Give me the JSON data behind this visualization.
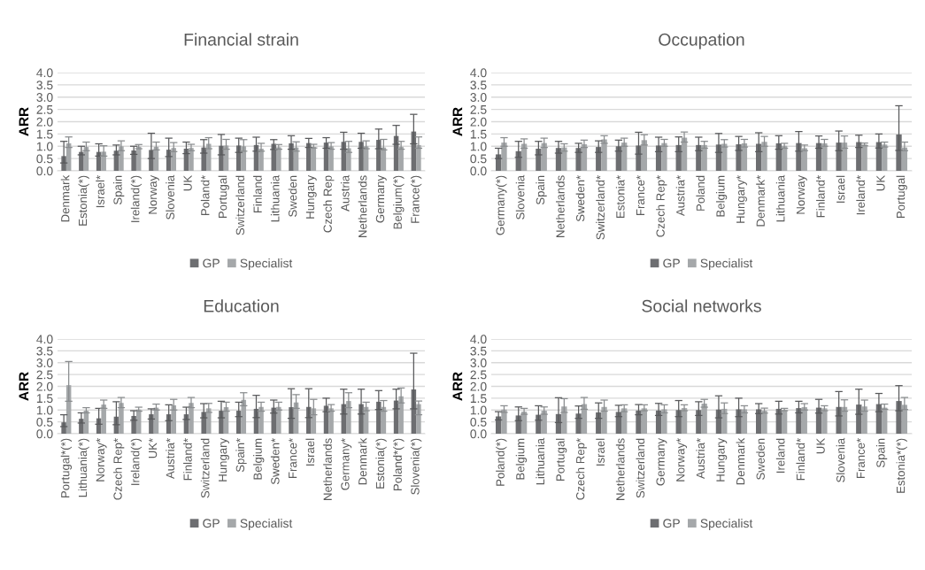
{
  "chart_data": [
    {
      "type": "bar",
      "title": "Financial strain",
      "ylabel": "ARR",
      "grid": "y",
      "legend": "bottom",
      "ylim": [
        0,
        4
      ],
      "yticks": [
        {
          "value": 0,
          "label": "0.0"
        },
        {
          "value": 0.5,
          "label": "0.5"
        },
        {
          "value": 1,
          "label": "1.0"
        },
        {
          "value": 1.5,
          "label": "1.5"
        },
        {
          "value": 2,
          "label": "2.0"
        },
        {
          "value": 2.5,
          "label": "2.5"
        },
        {
          "value": 3,
          "label": "3.0"
        },
        {
          "value": 3.5,
          "label": "3.5"
        },
        {
          "value": 4,
          "label": "4.0"
        }
      ],
      "categories": [
        "Denmark",
        "Estonia(*)",
        "Israel*",
        "Spain",
        "Ireland(*)",
        "Norway",
        "Slovenia",
        "UK",
        "Poland*",
        "Portugal",
        "Switzerland",
        "Finland",
        "Lithuania",
        "Sweden",
        "Hungary",
        "Czech Rep",
        "Austria",
        "Netherlands",
        "Germany",
        "Belgium(*)",
        "France(*)"
      ],
      "series": [
        {
          "name": "GP",
          "color": "#6d6e71",
          "values": [
            0.6,
            0.77,
            0.77,
            0.82,
            0.83,
            0.85,
            0.86,
            0.9,
            0.95,
            1.02,
            1.03,
            1.05,
            1.1,
            1.12,
            1.13,
            1.15,
            1.18,
            1.18,
            1.26,
            1.42,
            1.6
          ],
          "errors": [
            [
              0.32,
              1.2
            ],
            [
              0.65,
              1.0
            ],
            [
              0.6,
              1.1
            ],
            [
              0.65,
              1.05
            ],
            [
              0.67,
              1.0
            ],
            [
              0.5,
              1.53
            ],
            [
              0.58,
              1.33
            ],
            [
              0.7,
              1.17
            ],
            [
              0.72,
              1.27
            ],
            [
              0.65,
              1.48
            ],
            [
              0.75,
              1.33
            ],
            [
              0.8,
              1.37
            ],
            [
              0.87,
              1.27
            ],
            [
              0.88,
              1.43
            ],
            [
              0.95,
              1.32
            ],
            [
              0.92,
              1.35
            ],
            [
              0.88,
              1.57
            ],
            [
              0.92,
              1.53
            ],
            [
              0.9,
              1.7
            ],
            [
              1.08,
              1.85
            ],
            [
              1.1,
              2.3
            ]
          ]
        },
        {
          "name": "Specialist",
          "color": "#a5a8aa",
          "values": [
            1.12,
            0.97,
            0.78,
            1.0,
            0.98,
            0.98,
            0.93,
            0.93,
            1.1,
            1.03,
            1.0,
            0.9,
            0.96,
            0.95,
            0.97,
            1.0,
            0.92,
            1.0,
            0.95,
            0.98,
            1.05
          ],
          "errors": [
            [
              0.95,
              1.38
            ],
            [
              0.82,
              1.17
            ],
            [
              0.6,
              1.02
            ],
            [
              0.82,
              1.22
            ],
            [
              0.9,
              1.07
            ],
            [
              0.85,
              1.17
            ],
            [
              0.78,
              1.15
            ],
            [
              0.82,
              1.08
            ],
            [
              0.9,
              1.35
            ],
            [
              0.88,
              1.28
            ],
            [
              0.8,
              1.27
            ],
            [
              0.8,
              1.12
            ],
            [
              0.88,
              1.07
            ],
            [
              0.8,
              1.18
            ],
            [
              0.93,
              1.08
            ],
            [
              0.88,
              1.15
            ],
            [
              0.75,
              1.2
            ],
            [
              0.9,
              1.22
            ],
            [
              0.85,
              1.28
            ],
            [
              0.88,
              1.2
            ],
            [
              0.92,
              1.38
            ]
          ]
        }
      ]
    },
    {
      "type": "bar",
      "title": "Occupation",
      "ylabel": "ARR",
      "grid": "y",
      "legend": "bottom",
      "ylim": [
        0,
        4
      ],
      "yticks": [
        {
          "value": 0,
          "label": "0.0"
        },
        {
          "value": 0.5,
          "label": "0.5"
        },
        {
          "value": 1,
          "label": "1.0"
        },
        {
          "value": 1.5,
          "label": "1.5"
        },
        {
          "value": 2,
          "label": "2.0"
        },
        {
          "value": 2.5,
          "label": "2.5"
        },
        {
          "value": 3,
          "label": "3.0"
        },
        {
          "value": 3.5,
          "label": "3.5"
        },
        {
          "value": 4,
          "label": "4.0"
        }
      ],
      "categories": [
        "Germany(*)",
        "Slovenia",
        "Spain",
        "Netherlands",
        "Sweden*",
        "Switzerland*",
        "Estonia*",
        "France*",
        "Czech Rep*",
        "Austria*",
        "Poland",
        "Belgium",
        "Hungary*",
        "Denmark*",
        "Lithuania",
        "Norway",
        "Finland*",
        "Israel",
        "Ireland*",
        "UK",
        "Portugal"
      ],
      "series": [
        {
          "name": "GP",
          "color": "#6d6e71",
          "values": [
            0.67,
            0.8,
            0.9,
            0.93,
            0.93,
            0.97,
            1.0,
            1.03,
            1.03,
            1.05,
            1.05,
            1.07,
            1.08,
            1.1,
            1.12,
            1.13,
            1.13,
            1.15,
            1.17,
            1.17,
            1.48
          ],
          "errors": [
            [
              0.5,
              0.92
            ],
            [
              0.55,
              1.2
            ],
            [
              0.65,
              1.2
            ],
            [
              0.72,
              1.2
            ],
            [
              0.75,
              1.12
            ],
            [
              0.75,
              1.22
            ],
            [
              0.8,
              1.25
            ],
            [
              0.68,
              1.57
            ],
            [
              0.78,
              1.37
            ],
            [
              0.78,
              1.38
            ],
            [
              0.82,
              1.37
            ],
            [
              0.75,
              1.52
            ],
            [
              0.83,
              1.4
            ],
            [
              0.78,
              1.55
            ],
            [
              0.88,
              1.43
            ],
            [
              0.8,
              1.6
            ],
            [
              0.92,
              1.42
            ],
            [
              0.82,
              1.62
            ],
            [
              0.95,
              1.45
            ],
            [
              0.93,
              1.5
            ],
            [
              0.83,
              2.65
            ]
          ]
        },
        {
          "name": "Specialist",
          "color": "#a5a8aa",
          "values": [
            1.15,
            1.1,
            1.13,
            0.95,
            1.08,
            1.28,
            1.15,
            1.25,
            1.13,
            1.35,
            1.05,
            1.1,
            1.12,
            1.18,
            1.02,
            0.92,
            1.12,
            1.15,
            1.07,
            1.07,
            0.95
          ],
          "errors": [
            [
              1.0,
              1.35
            ],
            [
              0.92,
              1.3
            ],
            [
              0.95,
              1.33
            ],
            [
              0.8,
              1.1
            ],
            [
              0.95,
              1.25
            ],
            [
              1.12,
              1.43
            ],
            [
              1.0,
              1.33
            ],
            [
              1.05,
              1.47
            ],
            [
              1.0,
              1.28
            ],
            [
              1.17,
              1.58
            ],
            [
              0.92,
              1.2
            ],
            [
              0.97,
              1.27
            ],
            [
              0.97,
              1.28
            ],
            [
              1.0,
              1.4
            ],
            [
              0.92,
              1.12
            ],
            [
              0.82,
              1.05
            ],
            [
              1.0,
              1.28
            ],
            [
              0.92,
              1.42
            ],
            [
              1.02,
              1.13
            ],
            [
              0.97,
              1.17
            ],
            [
              0.82,
              1.17
            ]
          ]
        }
      ]
    },
    {
      "type": "bar",
      "title": "Education",
      "ylabel": "ARR",
      "grid": "y",
      "legend": "bottom",
      "ylim": [
        0,
        4
      ],
      "yticks": [
        {
          "value": 0,
          "label": "0.0"
        },
        {
          "value": 0.5,
          "label": "0.5"
        },
        {
          "value": 1,
          "label": "1.0"
        },
        {
          "value": 1.5,
          "label": "1.5"
        },
        {
          "value": 2,
          "label": "2.0"
        },
        {
          "value": 2.5,
          "label": "2.5"
        },
        {
          "value": 3,
          "label": "3.0"
        },
        {
          "value": 3.5,
          "label": "3.5"
        },
        {
          "value": 4,
          "label": "4.0"
        }
      ],
      "categories": [
        "Portugal*(*)",
        "Lithuania(*)",
        "Norway*",
        "Czech Rep*",
        "Ireland(*)",
        "UK*",
        "Austria*",
        "Finland*",
        "Switzerland",
        "Hungary",
        "Spain*",
        "Belgium",
        "Sweden*",
        "France*",
        "Israel",
        "Netherlands",
        "Germany*",
        "Denmark",
        "Estonia(*)",
        "Poland*(*)",
        "Slovenia(*)"
      ],
      "series": [
        {
          "name": "GP",
          "color": "#6d6e71",
          "values": [
            0.48,
            0.63,
            0.65,
            0.72,
            0.75,
            0.82,
            0.82,
            0.82,
            0.92,
            0.97,
            0.97,
            1.05,
            1.1,
            1.12,
            1.13,
            1.18,
            1.25,
            1.25,
            1.35,
            1.4,
            1.87
          ],
          "errors": [
            [
              0.3,
              0.8
            ],
            [
              0.45,
              0.88
            ],
            [
              0.4,
              1.07
            ],
            [
              0.38,
              1.35
            ],
            [
              0.57,
              0.97
            ],
            [
              0.62,
              1.05
            ],
            [
              0.55,
              1.22
            ],
            [
              0.6,
              1.12
            ],
            [
              0.67,
              1.27
            ],
            [
              0.67,
              1.37
            ],
            [
              0.72,
              1.33
            ],
            [
              0.68,
              1.62
            ],
            [
              0.87,
              1.42
            ],
            [
              0.65,
              1.9
            ],
            [
              0.68,
              1.9
            ],
            [
              0.93,
              1.5
            ],
            [
              0.83,
              1.88
            ],
            [
              0.83,
              1.88
            ],
            [
              1.02,
              1.82
            ],
            [
              1.05,
              1.88
            ],
            [
              1.05,
              3.4
            ]
          ]
        },
        {
          "name": "Specialist",
          "color": "#a5a8aa",
          "values": [
            2.05,
            0.97,
            1.23,
            1.3,
            1.02,
            1.1,
            1.2,
            1.3,
            1.07,
            1.12,
            1.43,
            1.13,
            1.13,
            1.32,
            1.07,
            1.07,
            1.38,
            1.13,
            1.13,
            1.58,
            1.25
          ],
          "errors": [
            [
              1.37,
              3.05
            ],
            [
              0.88,
              1.1
            ],
            [
              1.07,
              1.42
            ],
            [
              1.1,
              1.53
            ],
            [
              0.95,
              1.12
            ],
            [
              1.0,
              1.25
            ],
            [
              1.0,
              1.45
            ],
            [
              1.1,
              1.53
            ],
            [
              0.9,
              1.28
            ],
            [
              0.95,
              1.33
            ],
            [
              1.18,
              1.73
            ],
            [
              0.95,
              1.33
            ],
            [
              1.0,
              1.33
            ],
            [
              1.07,
              1.65
            ],
            [
              0.8,
              1.45
            ],
            [
              0.95,
              1.23
            ],
            [
              1.1,
              1.73
            ],
            [
              0.97,
              1.33
            ],
            [
              0.95,
              1.4
            ],
            [
              1.3,
              1.93
            ],
            [
              0.8,
              1.38
            ]
          ]
        }
      ]
    },
    {
      "type": "bar",
      "title": "Social networks",
      "ylabel": "ARR",
      "grid": "y",
      "legend": "bottom",
      "ylim": [
        0,
        4
      ],
      "yticks": [
        {
          "value": 0,
          "label": "0.0"
        },
        {
          "value": 0.5,
          "label": "0.5"
        },
        {
          "value": 1,
          "label": "1.0"
        },
        {
          "value": 1.5,
          "label": "1.5"
        },
        {
          "value": 2,
          "label": "2.0"
        },
        {
          "value": 2.5,
          "label": "2.5"
        },
        {
          "value": 3,
          "label": "3.0"
        },
        {
          "value": 3.5,
          "label": "3.5"
        },
        {
          "value": 4,
          "label": "4.0"
        }
      ],
      "categories": [
        "Poland(*)",
        "Belgium",
        "Lithuania",
        "Portugal",
        "Czech Rep*",
        "Israel",
        "Netherlands",
        "Switzerland",
        "Germany",
        "Norway*",
        "Austria*",
        "Hungary",
        "Denmark",
        "Sweden",
        "Ireland",
        "Finland*",
        "UK",
        "Slovenia",
        "France*",
        "Spain",
        "Estonia*(*)"
      ],
      "series": [
        {
          "name": "GP",
          "color": "#6d6e71",
          "values": [
            0.73,
            0.77,
            0.8,
            0.83,
            0.85,
            0.9,
            0.92,
            0.98,
            0.98,
            1.0,
            1.0,
            1.02,
            1.03,
            1.03,
            1.05,
            1.08,
            1.1,
            1.13,
            1.23,
            1.25,
            1.38
          ],
          "errors": [
            [
              0.58,
              0.93
            ],
            [
              0.55,
              1.13
            ],
            [
              0.57,
              1.18
            ],
            [
              0.47,
              1.52
            ],
            [
              0.65,
              1.17
            ],
            [
              0.65,
              1.3
            ],
            [
              0.72,
              1.2
            ],
            [
              0.8,
              1.23
            ],
            [
              0.77,
              1.28
            ],
            [
              0.72,
              1.4
            ],
            [
              0.77,
              1.35
            ],
            [
              0.67,
              1.6
            ],
            [
              0.72,
              1.5
            ],
            [
              0.85,
              1.27
            ],
            [
              0.83,
              1.37
            ],
            [
              0.88,
              1.37
            ],
            [
              0.87,
              1.45
            ],
            [
              0.75,
              1.78
            ],
            [
              0.82,
              1.88
            ],
            [
              0.93,
              1.7
            ],
            [
              0.97,
              2.03
            ]
          ]
        },
        {
          "name": "Specialist",
          "color": "#a5a8aa",
          "values": [
            1.02,
            0.93,
            0.97,
            1.15,
            1.25,
            1.13,
            1.07,
            1.07,
            1.03,
            1.08,
            1.27,
            1.05,
            1.03,
            0.97,
            1.0,
            1.12,
            1.07,
            1.13,
            1.15,
            1.1,
            1.22
          ],
          "errors": [
            [
              0.9,
              1.18
            ],
            [
              0.82,
              1.07
            ],
            [
              0.82,
              1.13
            ],
            [
              0.9,
              1.48
            ],
            [
              1.03,
              1.53
            ],
            [
              0.95,
              1.42
            ],
            [
              0.93,
              1.22
            ],
            [
              0.97,
              1.22
            ],
            [
              0.88,
              1.22
            ],
            [
              0.97,
              1.22
            ],
            [
              1.12,
              1.45
            ],
            [
              0.85,
              1.3
            ],
            [
              0.88,
              1.18
            ],
            [
              0.87,
              1.08
            ],
            [
              0.97,
              1.07
            ],
            [
              1.0,
              1.27
            ],
            [
              0.97,
              1.18
            ],
            [
              0.95,
              1.43
            ],
            [
              0.95,
              1.42
            ],
            [
              1.03,
              1.25
            ],
            [
              1.02,
              1.53
            ]
          ]
        }
      ]
    }
  ]
}
